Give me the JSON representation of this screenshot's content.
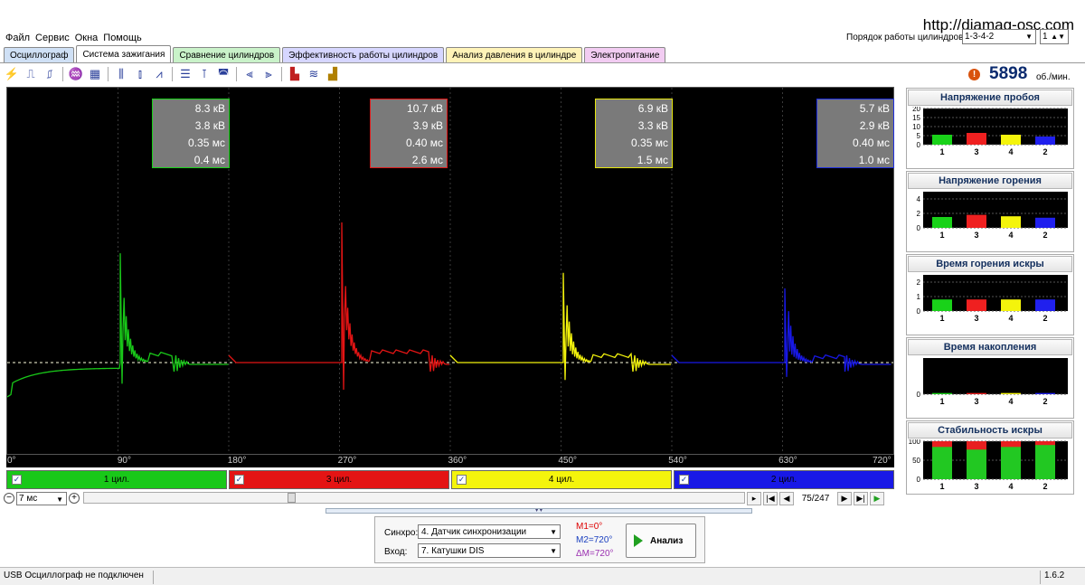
{
  "menu": [
    "Файл",
    "Сервис",
    "Окна",
    "Помощь"
  ],
  "url": "http://diamag-osc.com",
  "order": {
    "label": "Порядок работы цилиндров",
    "value": "1-3-4-2",
    "count": "1"
  },
  "tabs": [
    {
      "label": "Осциллограф",
      "color": "#cfe0f5",
      "active": false
    },
    {
      "label": "Система зажигания",
      "color": "#ffffff",
      "active": true
    },
    {
      "label": "Сравнение цилиндров",
      "color": "#c9f2c9",
      "active": false
    },
    {
      "label": "Эффективность работы цилиндров",
      "color": "#d6d6ff",
      "active": false
    },
    {
      "label": "Анализ давления в цилиндре",
      "color": "#fff3b8",
      "active": false
    },
    {
      "label": "Электропитание",
      "color": "#f2ccf2",
      "active": false
    }
  ],
  "toolbar_icons": [
    "spark-icon",
    "rise-icon",
    "fall-icon",
    "probe-icon",
    "table-icon",
    "cyl-grid-icon",
    "compare-icon",
    "sparkline-icon",
    "lines-icon",
    "range-icon",
    "cycle-icon",
    "chart-a-icon",
    "chart-b-icon",
    "bar-red-icon",
    "waves-icon",
    "bar-multi-icon"
  ],
  "rpm": {
    "value": "5898",
    "unit": "об./мин."
  },
  "x_ticks": [
    "0°",
    "90°",
    "180°",
    "270°",
    "360°",
    "450°",
    "540°",
    "630°",
    "720°"
  ],
  "measurements": [
    {
      "color": "#19d219",
      "lines": [
        "8.3 кВ",
        "3.8 кВ",
        "0.35 мс",
        "0.4 мс"
      ]
    },
    {
      "color": "#e01818",
      "lines": [
        "10.7 кВ",
        "3.9 кВ",
        "0.40 мс",
        "2.6 мс"
      ]
    },
    {
      "color": "#e6e60e",
      "lines": [
        "6.9 кВ",
        "3.3 кВ",
        "0.35 мс",
        "1.5 мс"
      ]
    },
    {
      "color": "#1f2fe0",
      "lines": [
        "5.7 кВ",
        "2.9 кВ",
        "0.40 мс",
        "1.0 мс"
      ]
    }
  ],
  "cylinders": [
    {
      "label": "1 цил.",
      "color": "#19c819"
    },
    {
      "label": "3 цил.",
      "color": "#e41414"
    },
    {
      "label": "4 цил.",
      "color": "#f4f40c"
    },
    {
      "label": "2 цил.",
      "color": "#1818e6"
    }
  ],
  "zoom": "7 мс",
  "frame": "75/247",
  "control": {
    "sync_label": "Синхро:",
    "sync_value": "4.  Датчик синхронизации",
    "input_label": "Вход:",
    "input_value": "7.  Катушки DIS",
    "m1": "M1=0°",
    "m2": "M2=720°",
    "dm": "ΔM=720°",
    "analyze": "Анализ"
  },
  "status": {
    "left": "USB Осциллограф не подключен",
    "version": "1.6.2"
  },
  "panels": [
    {
      "title": "Напряжение пробоя",
      "yticks": [
        "20",
        "15",
        "10",
        "5",
        "0"
      ],
      "ymax": 20
    },
    {
      "title": "Напряжение горения",
      "yticks": [
        "4",
        "2",
        "0"
      ],
      "ymax": 5
    },
    {
      "title": "Время горения искры",
      "yticks": [
        "2",
        "1",
        "0"
      ],
      "ymax": 2.5
    },
    {
      "title": "Время накопления",
      "yticks": [
        "0"
      ],
      "ymax": 3
    },
    {
      "title": "Стабильность искры",
      "yticks": [
        "100",
        "50",
        "0"
      ],
      "ymax": 100
    }
  ],
  "chart_data": [
    {
      "type": "bar",
      "title": "Напряжение пробоя",
      "categories": [
        "1",
        "3",
        "4",
        "2"
      ],
      "values": [
        5.5,
        6.5,
        5.5,
        4.5
      ],
      "ylim": [
        0,
        20
      ]
    },
    {
      "type": "bar",
      "title": "Напряжение горения",
      "categories": [
        "1",
        "3",
        "4",
        "2"
      ],
      "values": [
        1.5,
        1.8,
        1.6,
        1.4
      ],
      "ylim": [
        0,
        5
      ]
    },
    {
      "type": "bar",
      "title": "Время горения искры",
      "categories": [
        "1",
        "3",
        "4",
        "2"
      ],
      "values": [
        0.8,
        0.8,
        0.8,
        0.8
      ],
      "ylim": [
        0,
        2.5
      ]
    },
    {
      "type": "bar",
      "title": "Время накопления",
      "categories": [
        "1",
        "3",
        "4",
        "2"
      ],
      "values": [
        0.1,
        0.1,
        0.1,
        0.1
      ],
      "ylim": [
        0,
        3
      ]
    },
    {
      "type": "bar",
      "title": "Стабильность искры",
      "categories": [
        "1",
        "3",
        "4",
        "2"
      ],
      "values": [
        85,
        78,
        85,
        90
      ],
      "values_total": [
        100,
        100,
        100,
        100
      ],
      "ylim": [
        0,
        100
      ]
    }
  ],
  "bar_colors": [
    "#19d219",
    "#ef2020",
    "#f4f40c",
    "#2020ee"
  ]
}
